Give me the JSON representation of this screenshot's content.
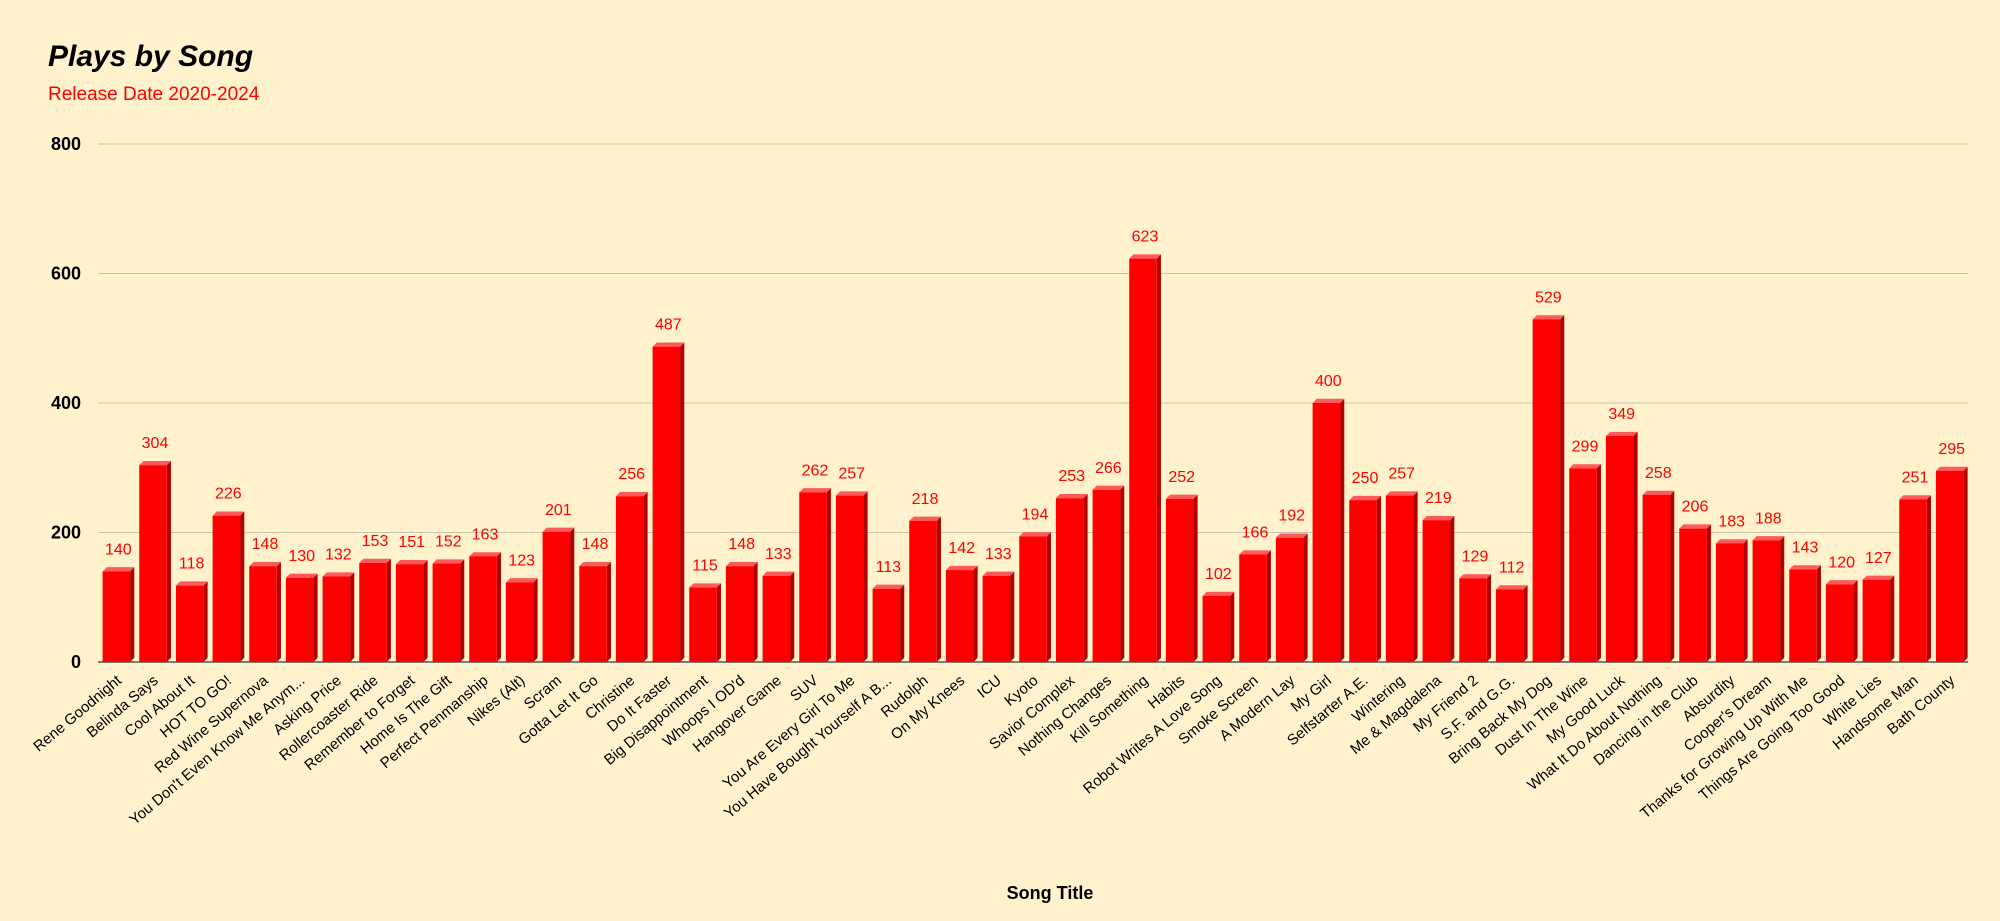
{
  "chart_data": {
    "type": "bar",
    "title": "Plays by Song",
    "subtitle": "Release Date 2020-2024",
    "xlabel": "Song Title",
    "ylabel": "",
    "ylim": [
      0,
      800
    ],
    "yticks": [
      0,
      200,
      400,
      600,
      800
    ],
    "grid": true,
    "legend": "none",
    "categories": [
      "Rene Goodnight",
      "Belinda Says",
      "Cool About It",
      "HOT TO GO!",
      "Red Wine Supernova",
      "You Don't Even Know Me Anym...",
      "Asking Price",
      "Rollercoaster Ride",
      "Remember to Forget",
      "Home Is The Gift",
      "Perfect Penmanship",
      "Nikes (Alt)",
      "Scram",
      "Gotta Let It Go",
      "Christine",
      "Do It Faster",
      "Big Disappointment",
      "Whoops I OD'd",
      "Hangover Game",
      "SUV",
      "You Are Every Girl To Me",
      "You Have Bought Yourself A B...",
      "Rudolph",
      "On My Knees",
      "ICU",
      "Kyoto",
      "Savior Complex",
      "Nothing Changes",
      "Kill Something",
      "Habits",
      "Robot Writes A Love Song",
      "Smoke Screen",
      "A Modern Lay",
      "My Girl",
      "Selfstarter A.E.",
      "Wintering",
      "Me & Magdalena",
      "My Friend 2",
      "S.F. and G.G.",
      "Bring Back My Dog",
      "Dust In The Wine",
      "My Good Luck",
      "What It Do About Nothing",
      "Dancing in the Club",
      "Absurdity",
      "Cooper's Dream",
      "Thanks for Growing Up With Me",
      "Things Are Going Too Good",
      "White Lies",
      "Handsome Man",
      "Bath County"
    ],
    "values": [
      140,
      304,
      118,
      226,
      148,
      130,
      132,
      153,
      151,
      152,
      163,
      123,
      201,
      148,
      256,
      487,
      115,
      148,
      133,
      262,
      257,
      113,
      218,
      142,
      133,
      194,
      253,
      266,
      623,
      252,
      102,
      166,
      192,
      400,
      250,
      257,
      219,
      129,
      112,
      529,
      299,
      349,
      258,
      206,
      183,
      188,
      143,
      120,
      127,
      251,
      295
    ],
    "colors": {
      "bar": "#ff0000",
      "bar_top": "#ff5a5a",
      "bar_side": "#b30000",
      "label": "#ff0000",
      "grid": "#c9c2b0",
      "background": "#fff2cc"
    }
  }
}
